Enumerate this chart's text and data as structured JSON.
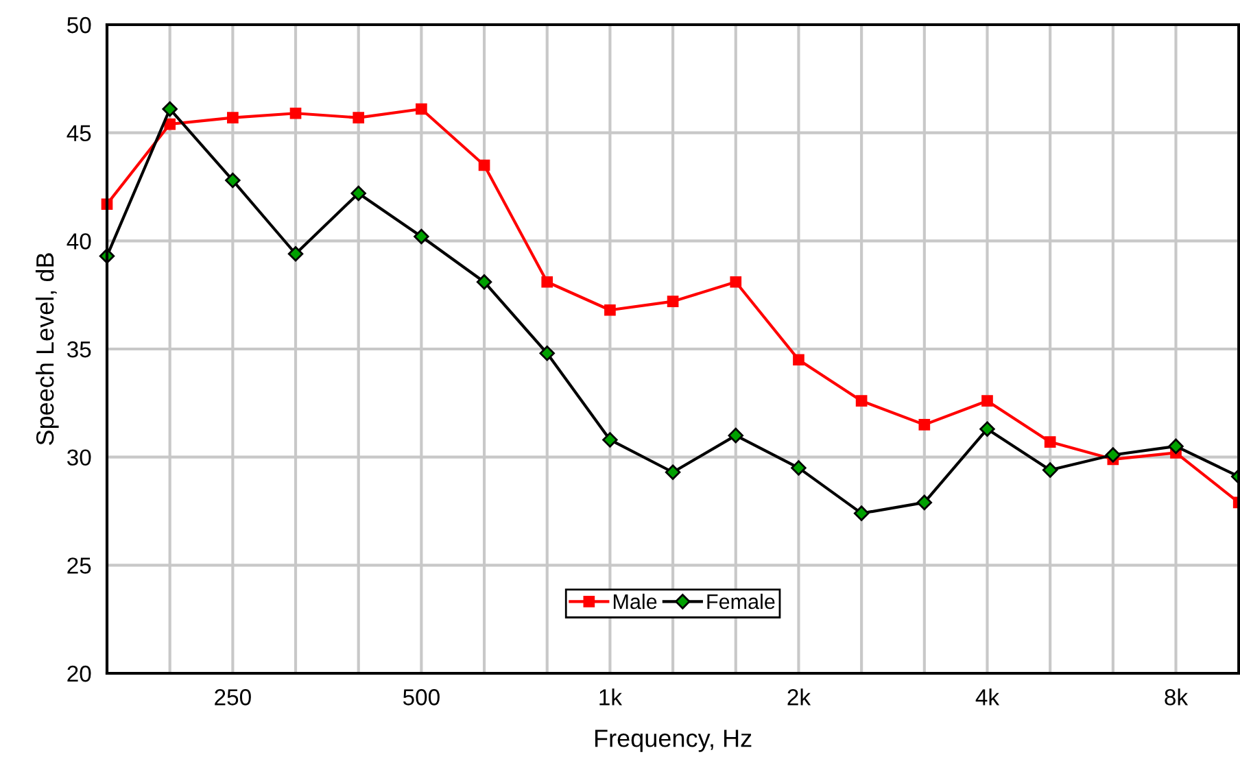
{
  "chart_data": {
    "type": "line",
    "xlabel": "Frequency, Hz",
    "ylabel": "Speech Level, dB",
    "categories": [
      null,
      null,
      "250",
      null,
      null,
      "500",
      null,
      null,
      "1k",
      null,
      null,
      "2k",
      null,
      null,
      "4k",
      null,
      null,
      "8k",
      null
    ],
    "ylim": [
      20,
      50
    ],
    "yticks": [
      20,
      25,
      30,
      35,
      40,
      45,
      50
    ],
    "grid": true,
    "legend": "bottom",
    "series": [
      {
        "name": "Male",
        "color": "#ff0000",
        "marker": "square",
        "values": [
          41.7,
          45.4,
          45.7,
          45.9,
          45.7,
          46.1,
          43.5,
          38.1,
          36.8,
          37.2,
          38.1,
          34.5,
          32.6,
          31.5,
          32.6,
          30.7,
          29.9,
          30.2,
          27.9
        ]
      },
      {
        "name": "Female",
        "color": "#000000",
        "marker": "diamond",
        "values": [
          39.3,
          46.1,
          42.8,
          39.4,
          42.2,
          40.2,
          38.1,
          34.8,
          30.8,
          29.3,
          31.0,
          29.5,
          27.4,
          27.9,
          31.3,
          29.4,
          30.1,
          30.5,
          29.1
        ]
      }
    ]
  }
}
